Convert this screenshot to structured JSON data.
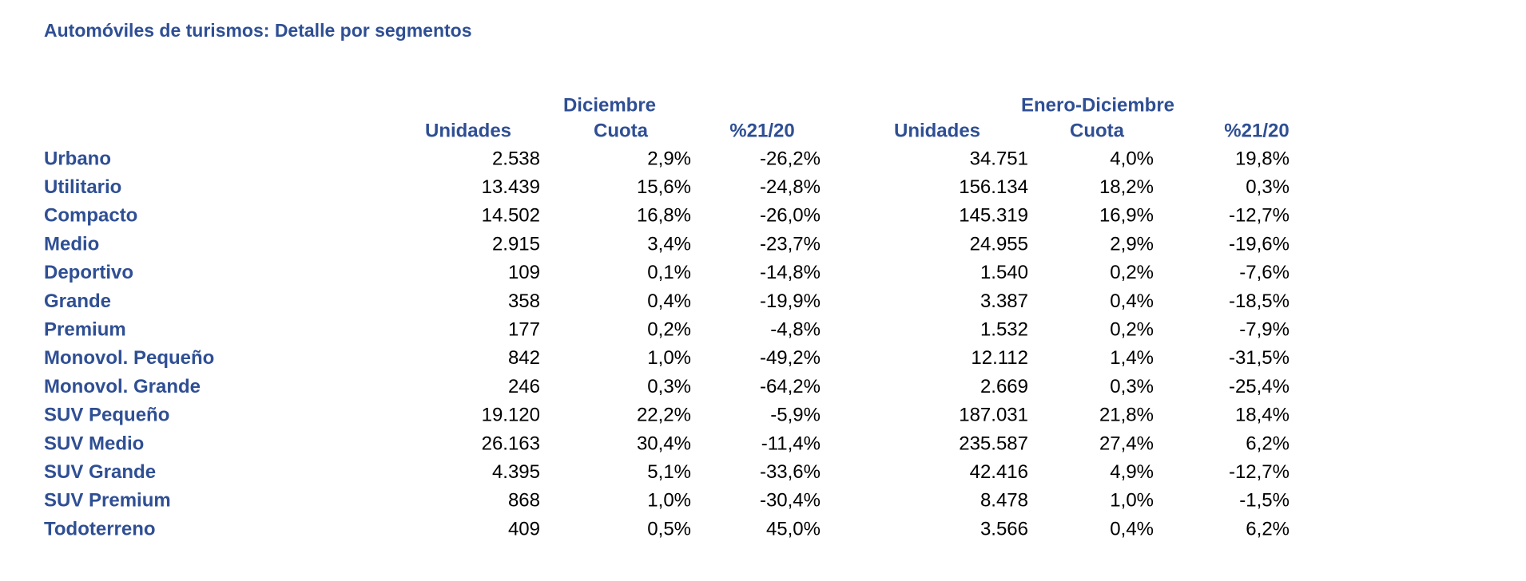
{
  "title": "Automóviles de turismos: Detalle por segmentos",
  "groups": [
    "Diciembre",
    "Enero-Diciembre"
  ],
  "columns": [
    "Unidades",
    "Cuota",
    "%21/20",
    "Unidades",
    "Cuota",
    "%21/20"
  ],
  "rows": [
    {
      "label": "Urbano",
      "cells": [
        "2.538",
        "2,9%",
        "-26,2%",
        "34.751",
        "4,0%",
        "19,8%"
      ]
    },
    {
      "label": "Utilitario",
      "cells": [
        "13.439",
        "15,6%",
        "-24,8%",
        "156.134",
        "18,2%",
        "0,3%"
      ]
    },
    {
      "label": "Compacto",
      "cells": [
        "14.502",
        "16,8%",
        "-26,0%",
        "145.319",
        "16,9%",
        "-12,7%"
      ]
    },
    {
      "label": "Medio",
      "cells": [
        "2.915",
        "3,4%",
        "-23,7%",
        "24.955",
        "2,9%",
        "-19,6%"
      ]
    },
    {
      "label": "Deportivo",
      "cells": [
        "109",
        "0,1%",
        "-14,8%",
        "1.540",
        "0,2%",
        "-7,6%"
      ]
    },
    {
      "label": "Grande",
      "cells": [
        "358",
        "0,4%",
        "-19,9%",
        "3.387",
        "0,4%",
        "-18,5%"
      ]
    },
    {
      "label": "Premium",
      "cells": [
        "177",
        "0,2%",
        "-4,8%",
        "1.532",
        "0,2%",
        "-7,9%"
      ]
    },
    {
      "label": "Monovol. Pequeño",
      "cells": [
        "842",
        "1,0%",
        "-49,2%",
        "12.112",
        "1,4%",
        "-31,5%"
      ]
    },
    {
      "label": "Monovol. Grande",
      "cells": [
        "246",
        "0,3%",
        "-64,2%",
        "2.669",
        "0,3%",
        "-25,4%"
      ]
    },
    {
      "label": "SUV Pequeño",
      "cells": [
        "19.120",
        "22,2%",
        "-5,9%",
        "187.031",
        "21,8%",
        "18,4%"
      ]
    },
    {
      "label": "SUV Medio",
      "cells": [
        "26.163",
        "30,4%",
        "-11,4%",
        "235.587",
        "27,4%",
        "6,2%"
      ]
    },
    {
      "label": "SUV Grande",
      "cells": [
        "4.395",
        "5,1%",
        "-33,6%",
        "42.416",
        "4,9%",
        "-12,7%"
      ]
    },
    {
      "label": "SUV Premium",
      "cells": [
        "868",
        "1,0%",
        "-30,4%",
        "8.478",
        "1,0%",
        "-1,5%"
      ]
    },
    {
      "label": "Todoterreno",
      "cells": [
        "409",
        "0,5%",
        "45,0%",
        "3.566",
        "0,4%",
        "6,2%"
      ]
    }
  ]
}
